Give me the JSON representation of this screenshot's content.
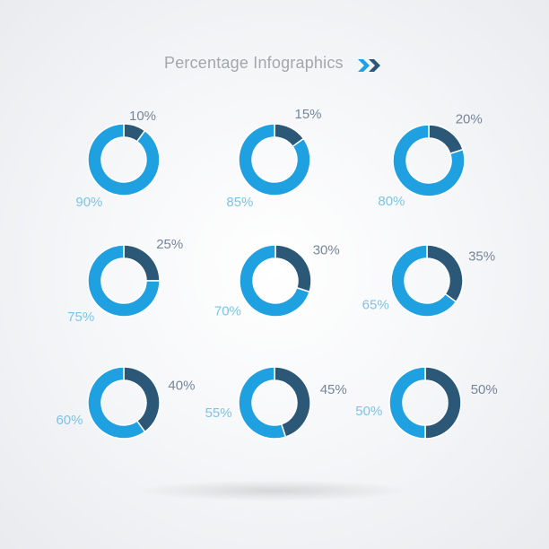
{
  "title": "Percentage Infographics",
  "title_icon": "double-chevron-right-icon",
  "colors": {
    "primary": "#1fa0e0",
    "secondary": "#2c5877",
    "primary_label": "#7cc4ea",
    "secondary_label": "#76869a",
    "title": "#a3a7ab"
  },
  "chart_data": {
    "type": "pie",
    "style": "donut",
    "title": "Percentage Infographics",
    "charts": [
      {
        "slices": [
          {
            "label": "10%",
            "value": 10
          },
          {
            "label": "90%",
            "value": 90
          }
        ]
      },
      {
        "slices": [
          {
            "label": "15%",
            "value": 15
          },
          {
            "label": "85%",
            "value": 85
          }
        ]
      },
      {
        "slices": [
          {
            "label": "20%",
            "value": 20
          },
          {
            "label": "80%",
            "value": 80
          }
        ]
      },
      {
        "slices": [
          {
            "label": "25%",
            "value": 25
          },
          {
            "label": "75%",
            "value": 75
          }
        ]
      },
      {
        "slices": [
          {
            "label": "30%",
            "value": 30
          },
          {
            "label": "70%",
            "value": 70
          }
        ]
      },
      {
        "slices": [
          {
            "label": "35%",
            "value": 35
          },
          {
            "label": "65%",
            "value": 65
          }
        ]
      },
      {
        "slices": [
          {
            "label": "40%",
            "value": 40
          },
          {
            "label": "60%",
            "value": 60
          }
        ]
      },
      {
        "slices": [
          {
            "label": "45%",
            "value": 45
          },
          {
            "label": "55%",
            "value": 55
          }
        ]
      },
      {
        "slices": [
          {
            "label": "50%",
            "value": 50
          },
          {
            "label": "50%",
            "value": 50
          }
        ]
      }
    ]
  }
}
